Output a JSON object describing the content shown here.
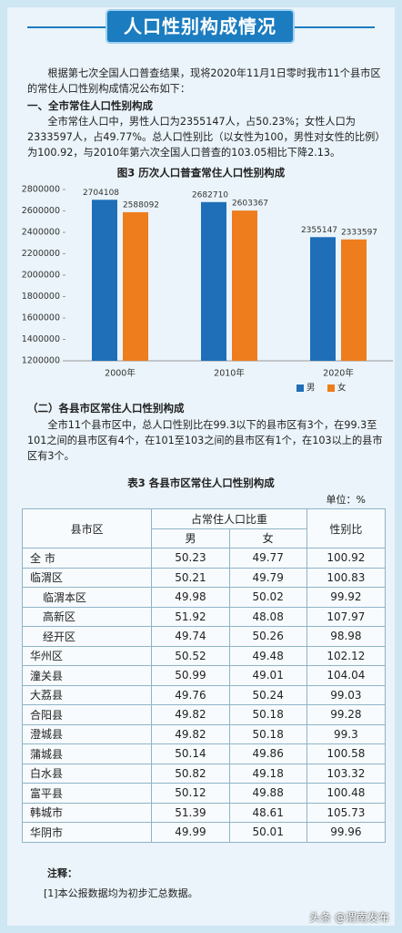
{
  "header": {
    "title": "人口性别构成情况"
  },
  "paragraphs": [
    "根据第七次全国人口普查结果，现将2020年11月1日零时我市11个县市区的常住人口性别构成情况公布如下：",
    "全市常住人口中，男性人口为2355147人，占50.23%；女性人口为2333597人，占49.77%。总人口性别比（以女性为100，男性对女性的比例）为100.92，与2010年第六次全国人口普查的103.05相比下降2.13。",
    "全市11个县市区中，总人口性别比在99.3以下的县市区有3个，在99.3至101之间的县市区有4个，在101至103之间的县市区有1个，在103以上的县市区有3个。"
  ],
  "headings": [
    "一、全市常住人口性别构成",
    "（二）各县市区常住人口性别构成"
  ],
  "chart_data": {
    "type": "bar",
    "title": "图3 历次人口普查常住人口性别构成",
    "categories": [
      "2000年",
      "2010年",
      "2020年"
    ],
    "series": [
      {
        "name": "男",
        "color": "#1f6fb8",
        "values": [
          2704108,
          2682710,
          2355147
        ]
      },
      {
        "name": "女",
        "color": "#ee7d1e",
        "values": [
          2588092,
          2603367,
          2333597
        ]
      }
    ],
    "ylim": [
      1200000,
      2800000
    ],
    "yticks": [
      1200000,
      1400000,
      1600000,
      1800000,
      2000000,
      2200000,
      2400000,
      2600000,
      2800000
    ],
    "grid": false,
    "legend": "bottom"
  },
  "table": {
    "title": "表3 各县市区常住人口性别构成",
    "unit": "单位：%",
    "header": [
      "县市区",
      "占常住人口比重",
      "性别比"
    ],
    "subheader": [
      "男",
      "女"
    ],
    "rows": [
      [
        "全 市",
        50.23,
        49.77,
        100.92
      ],
      [
        "临渭区",
        50.21,
        49.79,
        100.83
      ],
      [
        "临渭本区",
        49.98,
        50.02,
        99.92
      ],
      [
        "高新区",
        51.92,
        48.08,
        107.97
      ],
      [
        "经开区",
        49.74,
        50.26,
        98.98
      ],
      [
        "华州区",
        50.52,
        49.48,
        102.12
      ],
      [
        "潼关县",
        50.99,
        49.01,
        104.04
      ],
      [
        "大荔县",
        49.76,
        50.24,
        99.03
      ],
      [
        "合阳县",
        49.82,
        50.18,
        99.28
      ],
      [
        "澄城县",
        49.82,
        50.18,
        99.3
      ],
      [
        "蒲城县",
        50.14,
        49.86,
        100.58
      ],
      [
        "白水县",
        50.82,
        49.18,
        103.32
      ],
      [
        "富平县",
        50.12,
        49.88,
        100.48
      ],
      [
        "韩城市",
        51.39,
        48.61,
        105.73
      ],
      [
        "华阴市",
        49.99,
        50.01,
        99.96
      ]
    ]
  },
  "notes": {
    "title": "注释：",
    "items": [
      "[1]本公报数据均为初步汇总数据。"
    ]
  },
  "watermark": "头条 @渭南发布"
}
